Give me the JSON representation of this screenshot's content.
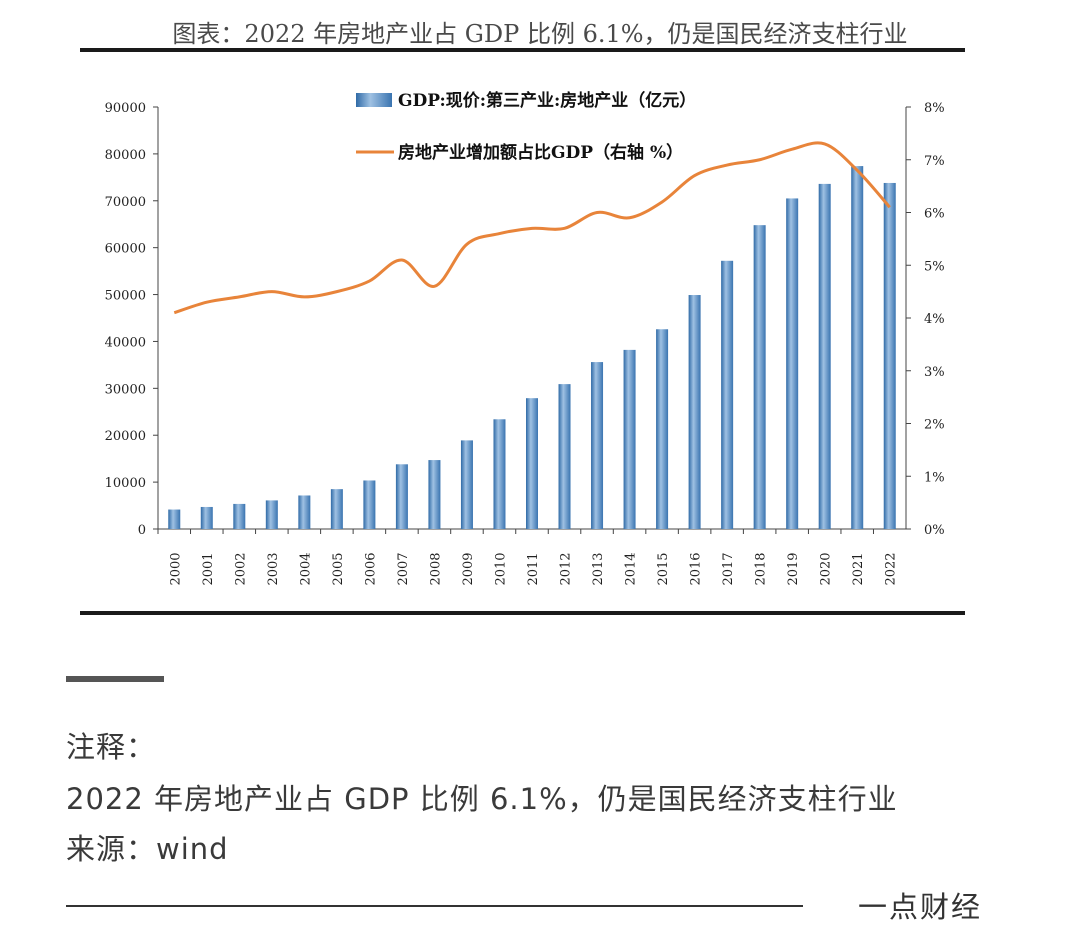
{
  "figure_title": "图表：2022 年房地产业占 GDP 比例 6.1%，仍是国民经济支柱行业",
  "note": {
    "label": "注释：",
    "body": "2022 年房地产业占 GDP 比例 6.1%，仍是国民经济支柱行业",
    "source": "来源：wind"
  },
  "brand": "一点财经",
  "chart_data": {
    "type": "bar",
    "categories": [
      "2000",
      "2001",
      "2002",
      "2003",
      "2004",
      "2005",
      "2006",
      "2007",
      "2008",
      "2009",
      "2010",
      "2011",
      "2012",
      "2013",
      "2014",
      "2015",
      "2016",
      "2017",
      "2018",
      "2019",
      "2020",
      "2021",
      "2022"
    ],
    "series": [
      {
        "name": "GDP:现价:第三产业:房地产业（亿元）",
        "type": "bar",
        "axis": "left",
        "color": "#4f86bd",
        "values": [
          4150,
          4700,
          5350,
          6100,
          7150,
          8500,
          10350,
          13800,
          14700,
          18900,
          23400,
          27900,
          30900,
          35600,
          38200,
          42600,
          49900,
          57200,
          64800,
          70500,
          73600,
          77400,
          73800
        ]
      },
      {
        "name": "房地产业增加额占比GDP（右轴 %）",
        "type": "line",
        "axis": "right",
        "color": "#e8843a",
        "values": [
          4.1,
          4.3,
          4.4,
          4.5,
          4.4,
          4.5,
          4.7,
          5.1,
          4.6,
          5.4,
          5.6,
          5.7,
          5.7,
          6.0,
          5.9,
          6.2,
          6.7,
          6.9,
          7.0,
          7.2,
          7.3,
          6.8,
          6.1
        ]
      }
    ],
    "y_left": {
      "ylim": [
        0,
        90000
      ],
      "ticks": [
        "0",
        "10000",
        "20000",
        "30000",
        "40000",
        "50000",
        "60000",
        "70000",
        "80000",
        "90000"
      ]
    },
    "y_right": {
      "ylim": [
        0,
        8
      ],
      "ticks": [
        "0%",
        "1%",
        "2%",
        "3%",
        "4%",
        "5%",
        "6%",
        "7%",
        "8%"
      ]
    },
    "legend_position": "top-center",
    "grid": false
  }
}
